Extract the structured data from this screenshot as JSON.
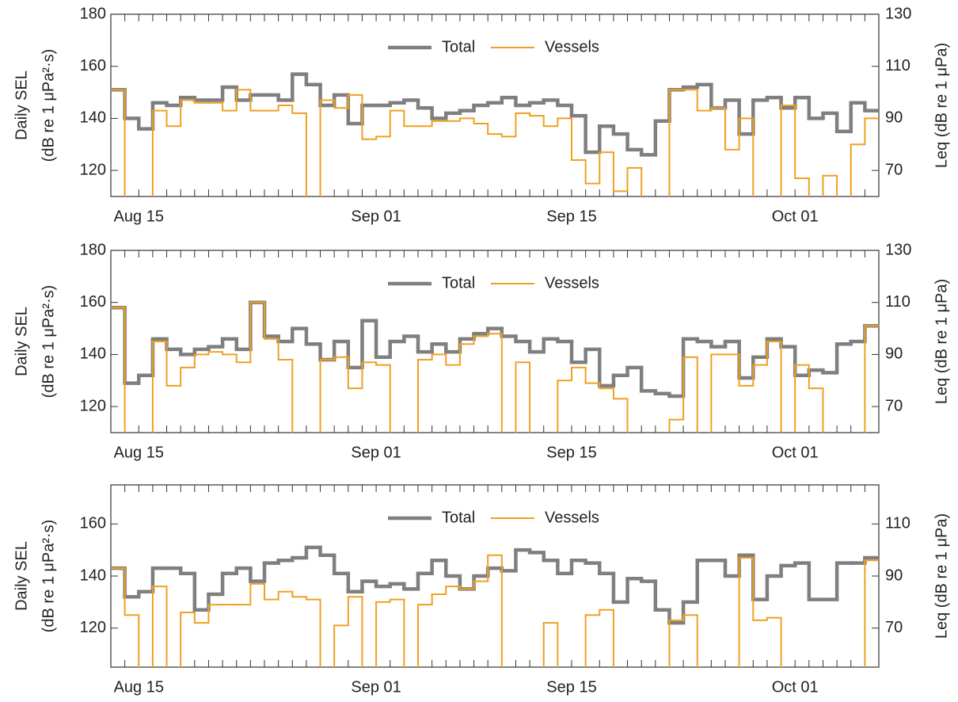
{
  "chart_data": [
    {
      "type": "step",
      "legend": "top",
      "ylabel": "Daily SEL",
      "ylabel2": "(dB re 1 μPa²·s)",
      "y2label": "Leq (dB re 1 μPa)",
      "categories": [
        null,
        null,
        "Aug 15",
        null,
        null,
        null,
        null,
        null,
        null,
        null,
        null,
        null,
        null,
        null,
        null,
        null,
        null,
        null,
        null,
        "Sep 01",
        null,
        null,
        null,
        null,
        null,
        null,
        null,
        null,
        null,
        null,
        null,
        null,
        null,
        "Sep 15",
        null,
        null,
        null,
        null,
        null,
        null,
        null,
        null,
        null,
        null,
        null,
        null,
        null,
        null,
        null,
        "Oct 01",
        null,
        null,
        null,
        null,
        null
      ],
      "ylim": [
        110,
        180
      ],
      "yticks": [
        120,
        140,
        160,
        180
      ],
      "y2lim": [
        60,
        130
      ],
      "y2ticks": [
        70,
        90,
        110,
        130
      ],
      "series": [
        {
          "name": "Total",
          "color": "#7f7f7f",
          "values": [
            151,
            140,
            136,
            146,
            145,
            148,
            147,
            147,
            152,
            147,
            149,
            149,
            147,
            157,
            153,
            145,
            149,
            138,
            145,
            145,
            146,
            147,
            144,
            140,
            142,
            143,
            145,
            146,
            148,
            145,
            146,
            147,
            145,
            141,
            127,
            137,
            134,
            128,
            126,
            139,
            151,
            152,
            153,
            144,
            147,
            134,
            147,
            148,
            144,
            148,
            140,
            142,
            135,
            146,
            143
          ]
        },
        {
          "name": "Vessels",
          "color": "#f0a020",
          "values": [
            151,
            null,
            null,
            143,
            137,
            147,
            146,
            146,
            143,
            151,
            143,
            143,
            145,
            142,
            null,
            147,
            144,
            149,
            132,
            133,
            143,
            137,
            137,
            139,
            139,
            140,
            138,
            134,
            133,
            142,
            141,
            137,
            140,
            124,
            115,
            127,
            112,
            121,
            null,
            null,
            151,
            151,
            143,
            144,
            128,
            140,
            null,
            null,
            145,
            117,
            null,
            118,
            null,
            130,
            140
          ]
        }
      ]
    },
    {
      "type": "step",
      "legend": "top",
      "ylabel": "Daily SEL",
      "ylabel2": "(dB re 1 μPa²·s)",
      "y2label": "Leq (dB re 1 μPa)",
      "categories": [
        null,
        null,
        "Aug 15",
        null,
        null,
        null,
        null,
        null,
        null,
        null,
        null,
        null,
        null,
        null,
        null,
        null,
        null,
        null,
        null,
        "Sep 01",
        null,
        null,
        null,
        null,
        null,
        null,
        null,
        null,
        null,
        null,
        null,
        null,
        null,
        "Sep 15",
        null,
        null,
        null,
        null,
        null,
        null,
        null,
        null,
        null,
        null,
        null,
        null,
        null,
        null,
        null,
        "Oct 01",
        null,
        null,
        null,
        null,
        null
      ],
      "ylim": [
        110,
        180
      ],
      "yticks": [
        120,
        140,
        160,
        180
      ],
      "y2lim": [
        60,
        130
      ],
      "y2ticks": [
        70,
        90,
        110,
        130
      ],
      "series": [
        {
          "name": "Total",
          "color": "#7f7f7f",
          "values": [
            158,
            129,
            132,
            146,
            142,
            140,
            142,
            143,
            146,
            142,
            160,
            147,
            145,
            150,
            144,
            138,
            145,
            135,
            153,
            139,
            145,
            147,
            141,
            144,
            141,
            146,
            148,
            150,
            147,
            145,
            141,
            146,
            145,
            137,
            142,
            128,
            132,
            135,
            126,
            125,
            124,
            146,
            145,
            143,
            145,
            131,
            139,
            146,
            143,
            132,
            134,
            133,
            144,
            145,
            151
          ]
        },
        {
          "name": "Vessels",
          "color": "#f0a020",
          "values": [
            158,
            null,
            null,
            145,
            128,
            135,
            140,
            141,
            140,
            137,
            160,
            146,
            138,
            null,
            null,
            138,
            139,
            127,
            137,
            136,
            null,
            null,
            138,
            140,
            136,
            144,
            147,
            148,
            null,
            137,
            null,
            null,
            130,
            135,
            129,
            127,
            123,
            null,
            null,
            null,
            115,
            139,
            null,
            140,
            140,
            128,
            136,
            145,
            null,
            136,
            127,
            null,
            null,
            null,
            151
          ]
        }
      ]
    },
    {
      "type": "step",
      "legend": "top",
      "ylabel": "Daily SEL",
      "ylabel2": "(dB re 1 μPa²·s)",
      "y2label": "Leq (dB re 1 μPa)",
      "categories": [
        null,
        null,
        "Aug 15",
        null,
        null,
        null,
        null,
        null,
        null,
        null,
        null,
        null,
        null,
        null,
        null,
        null,
        null,
        null,
        null,
        "Sep 01",
        null,
        null,
        null,
        null,
        null,
        null,
        null,
        null,
        null,
        null,
        null,
        null,
        null,
        "Sep 15",
        null,
        null,
        null,
        null,
        null,
        null,
        null,
        null,
        null,
        null,
        null,
        null,
        null,
        null,
        null,
        "Oct 01",
        null,
        null,
        null,
        null,
        null
      ],
      "ylim": [
        105,
        175
      ],
      "yticks": [
        120,
        140,
        160
      ],
      "y2lim": [
        55,
        125
      ],
      "y2ticks": [
        70,
        90,
        110
      ],
      "series": [
        {
          "name": "Total",
          "color": "#7f7f7f",
          "values": [
            143,
            132,
            134,
            143,
            143,
            141,
            127,
            133,
            141,
            143,
            138,
            145,
            146,
            147,
            151,
            148,
            141,
            134,
            138,
            136,
            137,
            135,
            141,
            146,
            140,
            135,
            140,
            143,
            142,
            150,
            149,
            146,
            141,
            146,
            145,
            141,
            130,
            139,
            138,
            127,
            122,
            130,
            146,
            146,
            140,
            148,
            131,
            140,
            144,
            145,
            131,
            131,
            145,
            145,
            147
          ]
        },
        {
          "name": "Vessels",
          "color": "#f0a020",
          "values": [
            143,
            125,
            null,
            136,
            null,
            126,
            122,
            129,
            129,
            129,
            137,
            131,
            134,
            132,
            131,
            null,
            121,
            132,
            null,
            130,
            131,
            null,
            129,
            133,
            136,
            135,
            138,
            148,
            null,
            null,
            null,
            122,
            null,
            null,
            125,
            127,
            null,
            null,
            null,
            null,
            123,
            125,
            null,
            null,
            null,
            147,
            123,
            124,
            null,
            null,
            null,
            null,
            null,
            null,
            146
          ]
        }
      ]
    }
  ]
}
